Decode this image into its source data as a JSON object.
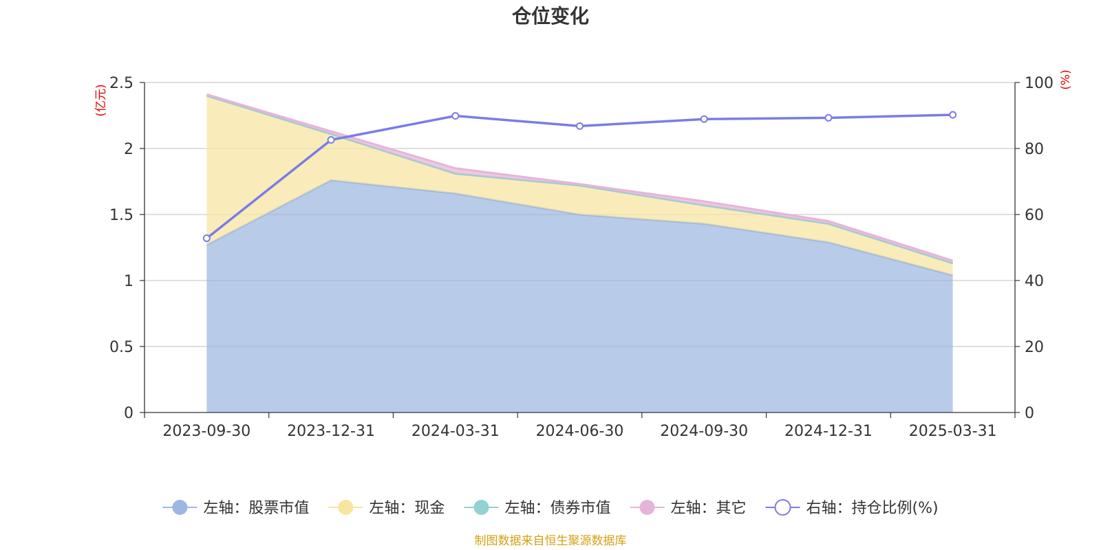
{
  "colors": {
    "stock": "#9db7e1",
    "cash": "#f7e5a0",
    "bond": "#94d1d1",
    "other": "#e5b5d9",
    "ratio": "#7a7ce8",
    "axis_unit": "#e60000",
    "source": "#d4a017"
  },
  "chart_data": {
    "type": "area",
    "title": "仓位变化",
    "left_unit": "(亿元)",
    "right_unit": "(%)",
    "categories": [
      "2023-09-30",
      "2023-12-31",
      "2024-03-31",
      "2024-06-30",
      "2024-09-30",
      "2024-12-31",
      "2025-03-31"
    ],
    "left_ylim": [
      0,
      2.5
    ],
    "left_ticks": [
      "0",
      "0.5",
      "1",
      "1.5",
      "2",
      "2.5"
    ],
    "right_ylim": [
      0,
      100
    ],
    "right_ticks": [
      "0",
      "20",
      "40",
      "60",
      "80",
      "100"
    ],
    "grid": true,
    "legend_position": "bottom",
    "series": [
      {
        "name": "左轴：股票市值",
        "axis": "left",
        "stacked": true,
        "color_key": "stock",
        "values": [
          1.27,
          1.76,
          1.66,
          1.5,
          1.43,
          1.29,
          1.04
        ]
      },
      {
        "name": "左轴：现金",
        "axis": "left",
        "stacked": true,
        "color_key": "cash",
        "values": [
          1.13,
          0.35,
          0.15,
          0.22,
          0.14,
          0.14,
          0.09
        ]
      },
      {
        "name": "左轴：债券市值",
        "axis": "left",
        "stacked": true,
        "color_key": "bond",
        "values": [
          0,
          0,
          0,
          0,
          0,
          0,
          0
        ]
      },
      {
        "name": "左轴：其它",
        "axis": "left",
        "stacked": true,
        "color_key": "other",
        "values": [
          0.01,
          0.02,
          0.04,
          0.01,
          0.03,
          0.02,
          0.02
        ]
      },
      {
        "name": "右轴：持仓比例(%)",
        "axis": "right",
        "color_key": "ratio",
        "values": [
          52.8,
          82.6,
          89.9,
          86.8,
          88.9,
          89.3,
          90.2
        ]
      }
    ]
  },
  "source_note": "制图数据来自恒生聚源数据库"
}
